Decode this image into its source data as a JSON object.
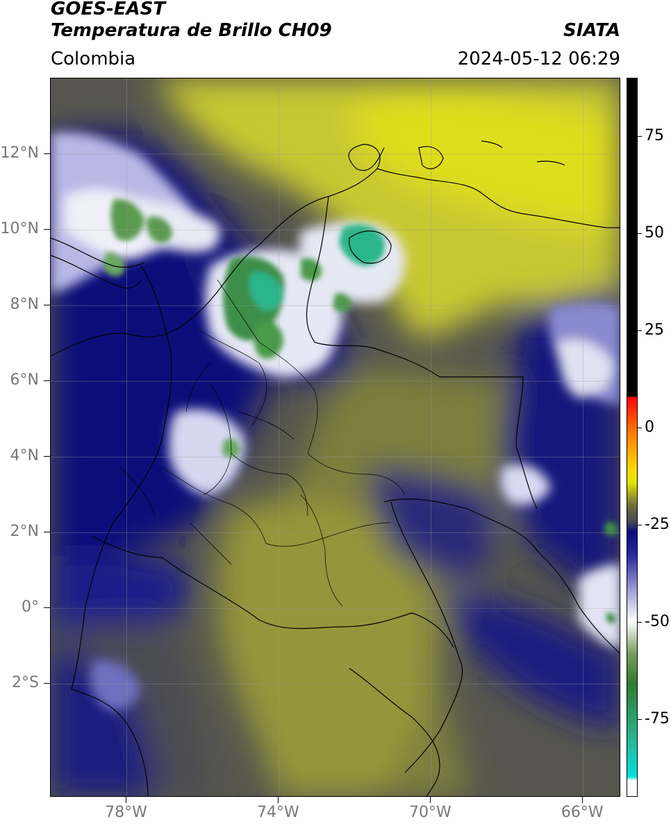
{
  "header": {
    "satellite": "GOES-EAST",
    "product": "Temperatura de Brillo CH09",
    "agency": "SIATA",
    "region": "Colombia",
    "timestamp": "2024-05-12 06:29"
  },
  "map": {
    "lat_range": [
      -5,
      14
    ],
    "lon_range": [
      -80,
      -65
    ],
    "lat_ticks": [
      {
        "value": 12,
        "label": "12°N"
      },
      {
        "value": 10,
        "label": "10°N"
      },
      {
        "value": 8,
        "label": "8°N"
      },
      {
        "value": 6,
        "label": "6°N"
      },
      {
        "value": 4,
        "label": "4°N"
      },
      {
        "value": 2,
        "label": "2°N"
      },
      {
        "value": 0,
        "label": "0°"
      },
      {
        "value": -2,
        "label": "2°S"
      }
    ],
    "lon_ticks": [
      {
        "value": -78,
        "label": "78°W"
      },
      {
        "value": -74,
        "label": "74°W"
      },
      {
        "value": -70,
        "label": "70°W"
      },
      {
        "value": -66,
        "label": "66°W"
      }
    ],
    "colors": {
      "warm_yellow": "#d8d81a",
      "olive": "#8c8c3c",
      "gray_olive": "#5a5a52",
      "navy": "#10107a",
      "white_cloud": "#eef0f8",
      "green_cloud": "#4a9a4a",
      "teal_core": "#2ab58a"
    }
  },
  "colorbar": {
    "range": [
      -95,
      90
    ],
    "ticks": [
      {
        "value": 75,
        "label": "75"
      },
      {
        "value": 50,
        "label": "50"
      },
      {
        "value": 25,
        "label": "25"
      },
      {
        "value": 0,
        "label": "0"
      },
      {
        "value": -25,
        "label": "-25"
      },
      {
        "value": -50,
        "label": "-50"
      },
      {
        "value": -75,
        "label": "-75"
      }
    ],
    "stops": [
      {
        "value": 90,
        "color": "#000000"
      },
      {
        "value": 8,
        "color": "#000000"
      },
      {
        "value": 7.9,
        "color": "#ff0000"
      },
      {
        "value": 0,
        "color": "#ff6a00"
      },
      {
        "value": -10,
        "color": "#ffd400"
      },
      {
        "value": -14,
        "color": "#e6e600"
      },
      {
        "value": -20,
        "color": "#6f6f3a"
      },
      {
        "value": -24,
        "color": "#4a4a50"
      },
      {
        "value": -27,
        "color": "#0a0a80"
      },
      {
        "value": -33,
        "color": "#2a2aa0"
      },
      {
        "value": -42,
        "color": "#a0a0d8"
      },
      {
        "value": -50,
        "color": "#ffffff"
      },
      {
        "value": -58,
        "color": "#7aa060"
      },
      {
        "value": -66,
        "color": "#2f7a2f"
      },
      {
        "value": -80,
        "color": "#2ab590"
      },
      {
        "value": -90,
        "color": "#00e0e0"
      },
      {
        "value": -91,
        "color": "#ffffff"
      },
      {
        "value": -95,
        "color": "#ffffff"
      }
    ]
  }
}
